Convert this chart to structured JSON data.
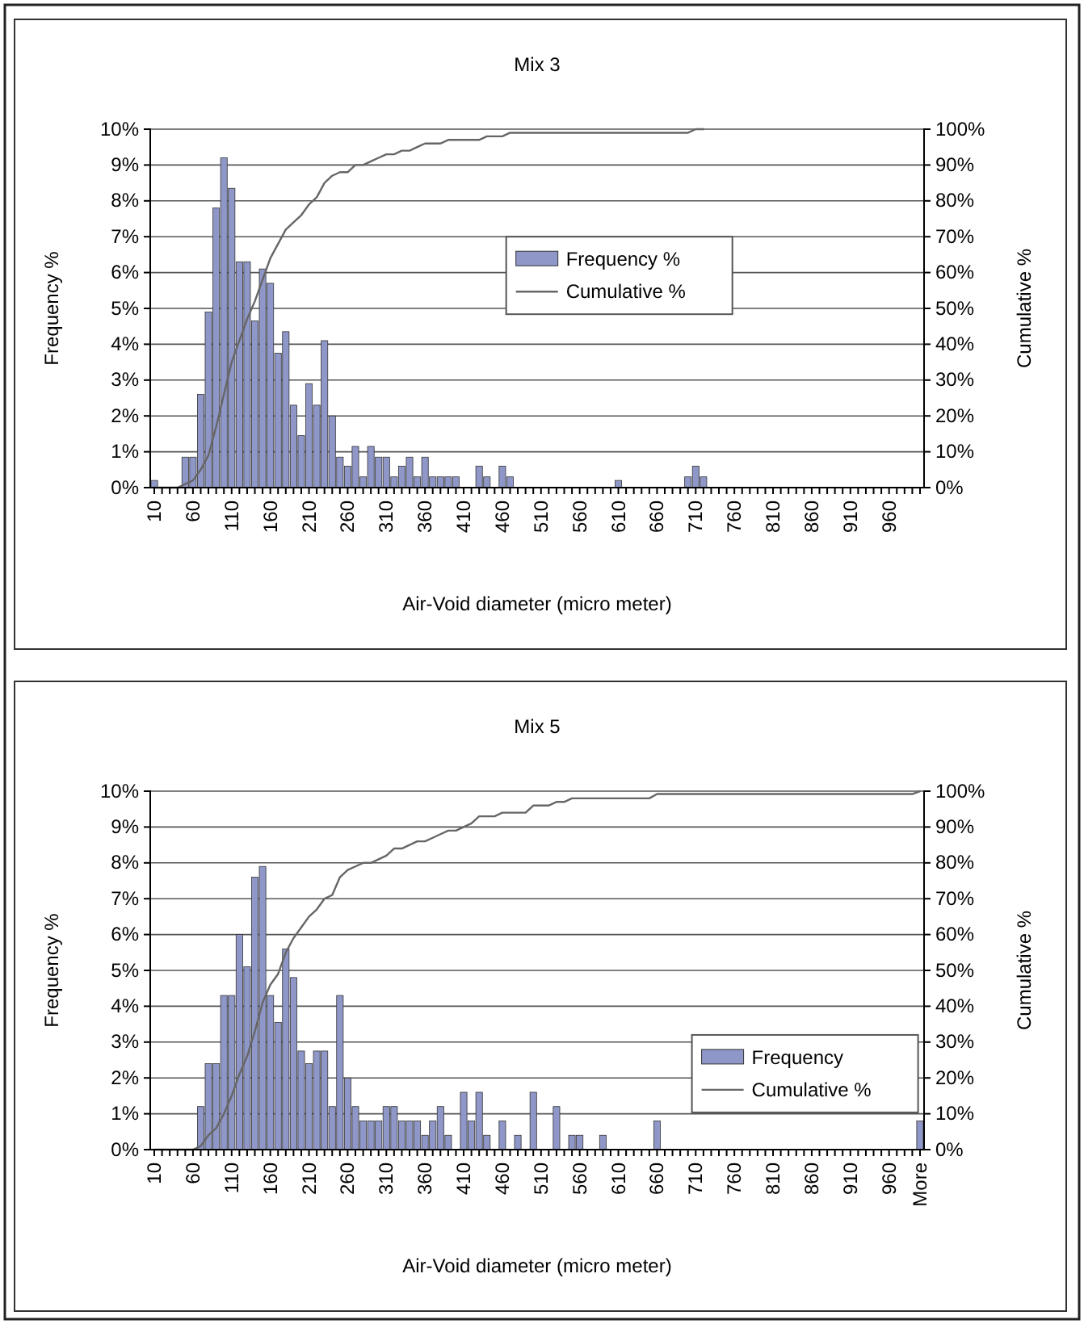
{
  "chart_data": [
    {
      "type": "bar",
      "title": "Mix 3",
      "xlabel": "Air-Void diameter (micro meter)",
      "ylabel": "Frequency %",
      "y2label": "Cumulative %",
      "categories": [
        "10",
        null,
        null,
        null,
        null,
        "60",
        null,
        null,
        null,
        null,
        "110",
        null,
        null,
        null,
        null,
        "160",
        null,
        null,
        null,
        null,
        "210",
        null,
        null,
        null,
        null,
        "260",
        null,
        null,
        null,
        null,
        "310",
        null,
        null,
        null,
        null,
        "360",
        null,
        null,
        null,
        null,
        "410",
        null,
        null,
        null,
        null,
        "460",
        null,
        null,
        null,
        null,
        "510",
        null,
        null,
        null,
        null,
        "560",
        null,
        null,
        null,
        null,
        "610",
        null,
        null,
        null,
        null,
        "660",
        null,
        null,
        null,
        null,
        "710",
        null,
        null,
        null,
        null,
        "760",
        null,
        null,
        null,
        null,
        "810",
        null,
        null,
        null,
        null,
        "860",
        null,
        null,
        null,
        null,
        "910",
        null,
        null,
        null,
        null,
        "960",
        null,
        null,
        null,
        null
      ],
      "series": [
        {
          "name": "Frequency %",
          "color": "#8e97c8",
          "values": [
            0.2,
            0,
            0,
            0,
            0.85,
            0.85,
            2.6,
            4.9,
            7.8,
            9.2,
            8.35,
            6.3,
            6.3,
            4.65,
            6.1,
            5.7,
            3.75,
            4.35,
            2.3,
            1.45,
            2.9,
            2.3,
            4.1,
            2.0,
            0.85,
            0.6,
            1.15,
            0.3,
            1.15,
            0.85,
            0.85,
            0.3,
            0.6,
            0.85,
            0.3,
            0.85,
            0.3,
            0.3,
            0.3,
            0.3,
            0,
            0,
            0.6,
            0.3,
            0,
            0.6,
            0.3,
            0,
            0,
            0,
            0,
            0,
            0,
            0,
            0,
            0,
            0,
            0,
            0,
            0,
            0.2,
            0,
            0,
            0,
            0,
            0,
            0,
            0,
            0,
            0.3,
            0.6,
            0.3,
            0,
            0,
            0,
            0,
            0,
            0,
            0,
            0,
            0,
            0,
            0,
            0,
            0,
            0,
            0,
            0,
            0,
            0,
            0,
            0,
            0,
            0,
            0,
            0,
            0,
            0,
            0,
            0
          ]
        },
        {
          "name": "Cumulative %",
          "type": "line",
          "axis": "y2",
          "color": "#666666",
          "values": [
            0,
            0,
            0,
            0,
            1,
            2,
            5,
            9,
            17,
            26,
            35,
            41,
            47,
            52,
            58,
            64,
            68,
            72,
            74,
            76,
            79,
            81,
            85,
            87,
            88,
            88,
            90,
            90,
            91,
            92,
            93,
            93,
            94,
            94,
            95,
            96,
            96,
            96,
            97,
            97,
            97,
            97,
            97,
            98,
            98,
            98,
            99,
            99,
            99,
            99,
            99,
            99,
            99,
            99,
            99,
            99,
            99,
            99,
            99,
            99,
            99,
            99,
            99,
            99,
            99,
            99,
            99,
            99,
            99,
            99,
            100,
            100,
            null,
            null,
            null,
            null,
            null,
            null,
            null,
            null,
            null,
            null,
            null,
            null,
            null,
            null,
            null,
            null,
            null,
            null,
            null,
            null,
            null,
            null,
            null,
            null,
            null,
            null,
            null,
            null
          ]
        }
      ],
      "ylim": [
        0,
        10
      ],
      "yticks": [
        {
          "value": 0,
          "label": "0%"
        },
        {
          "value": 1,
          "label": "1%"
        },
        {
          "value": 2,
          "label": "2%"
        },
        {
          "value": 3,
          "label": "3%"
        },
        {
          "value": 4,
          "label": "4%"
        },
        {
          "value": 5,
          "label": "5%"
        },
        {
          "value": 6,
          "label": "6%"
        },
        {
          "value": 7,
          "label": "7%"
        },
        {
          "value": 8,
          "label": "8%"
        },
        {
          "value": 9,
          "label": "9%"
        },
        {
          "value": 10,
          "label": "10%"
        }
      ],
      "y2lim": [
        0,
        100
      ],
      "y2ticks": [
        {
          "value": 0,
          "label": "0%"
        },
        {
          "value": 10,
          "label": "10%"
        },
        {
          "value": 20,
          "label": "20%"
        },
        {
          "value": 30,
          "label": "30%"
        },
        {
          "value": 40,
          "label": "40%"
        },
        {
          "value": 50,
          "label": "50%"
        },
        {
          "value": 60,
          "label": "60%"
        },
        {
          "value": 70,
          "label": "70%"
        },
        {
          "value": 80,
          "label": "80%"
        },
        {
          "value": 90,
          "label": "90%"
        },
        {
          "value": 100,
          "label": "100%"
        }
      ],
      "grid": "y",
      "legend": "center"
    },
    {
      "type": "bar",
      "title": "Mix 5",
      "xlabel": "Air-Void diameter (micro meter)",
      "ylabel": "Frequency %",
      "y2label": "Cumulative %",
      "categories": [
        "10",
        null,
        null,
        null,
        null,
        "60",
        null,
        null,
        null,
        null,
        "110",
        null,
        null,
        null,
        null,
        "160",
        null,
        null,
        null,
        null,
        "210",
        null,
        null,
        null,
        null,
        "260",
        null,
        null,
        null,
        null,
        "310",
        null,
        null,
        null,
        null,
        "360",
        null,
        null,
        null,
        null,
        "410",
        null,
        null,
        null,
        null,
        "460",
        null,
        null,
        null,
        null,
        "510",
        null,
        null,
        null,
        null,
        "560",
        null,
        null,
        null,
        null,
        "610",
        null,
        null,
        null,
        null,
        "660",
        null,
        null,
        null,
        null,
        "710",
        null,
        null,
        null,
        null,
        "760",
        null,
        null,
        null,
        null,
        "810",
        null,
        null,
        null,
        null,
        "860",
        null,
        null,
        null,
        null,
        "910",
        null,
        null,
        null,
        null,
        "960",
        null,
        null,
        null,
        "More"
      ],
      "series": [
        {
          "name": "Frequency",
          "color": "#8e97c8",
          "values": [
            0,
            0,
            0,
            0,
            0,
            0,
            1.2,
            2.4,
            2.4,
            4.3,
            4.3,
            6.0,
            5.1,
            7.6,
            7.9,
            4.3,
            3.55,
            5.6,
            4.8,
            2.75,
            2.4,
            2.75,
            2.75,
            1.2,
            4.3,
            2.0,
            1.2,
            0.8,
            0.8,
            0.8,
            1.2,
            1.2,
            0.8,
            0.8,
            0.8,
            0.4,
            0.8,
            1.2,
            0.4,
            0,
            1.6,
            0.8,
            1.6,
            0.4,
            0,
            0.8,
            0,
            0.4,
            0,
            1.6,
            0,
            0,
            1.2,
            0,
            0.4,
            0.4,
            0,
            0,
            0.4,
            0,
            0,
            0,
            0,
            0,
            0,
            0.8,
            0,
            0,
            0,
            0,
            0,
            0,
            0,
            0,
            0,
            0,
            0,
            0,
            0,
            0,
            0,
            0,
            0,
            0,
            0,
            0,
            0,
            0,
            0,
            0,
            0,
            0,
            0,
            0,
            0,
            0,
            0,
            0,
            0,
            0.8
          ]
        },
        {
          "name": "Cumulative %",
          "type": "line",
          "axis": "y2",
          "color": "#666666",
          "values": [
            0,
            0,
            0,
            0,
            0,
            0,
            1,
            4,
            6,
            10,
            15,
            21,
            26,
            33,
            41,
            46,
            49,
            55,
            59,
            62,
            65,
            67,
            70,
            71,
            76,
            78,
            79,
            80,
            80,
            81,
            82,
            84,
            84,
            85,
            86,
            86,
            87,
            88,
            89,
            89,
            90,
            91,
            93,
            93,
            93,
            94,
            94,
            94,
            94,
            96,
            96,
            96,
            97,
            97,
            98,
            98,
            98,
            98,
            98,
            98,
            98,
            98,
            98,
            98,
            98,
            99.2,
            99.2,
            99.2,
            99.2,
            99.2,
            99.2,
            99.2,
            99.2,
            99.2,
            99.2,
            99.2,
            99.2,
            99.2,
            99.2,
            99.2,
            99.2,
            99.2,
            99.2,
            99.2,
            99.2,
            99.2,
            99.2,
            99.2,
            99.2,
            99.2,
            99.2,
            99.2,
            99.2,
            99.2,
            99.2,
            99.2,
            99.2,
            99.2,
            99.2,
            100.0
          ]
        }
      ],
      "ylim": [
        0,
        10
      ],
      "yticks": [
        {
          "value": 0,
          "label": "0%"
        },
        {
          "value": 1,
          "label": "1%"
        },
        {
          "value": 2,
          "label": "2%"
        },
        {
          "value": 3,
          "label": "3%"
        },
        {
          "value": 4,
          "label": "4%"
        },
        {
          "value": 5,
          "label": "5%"
        },
        {
          "value": 6,
          "label": "6%"
        },
        {
          "value": 7,
          "label": "7%"
        },
        {
          "value": 8,
          "label": "8%"
        },
        {
          "value": 9,
          "label": "9%"
        },
        {
          "value": 10,
          "label": "10%"
        }
      ],
      "y2lim": [
        0,
        100
      ],
      "y2ticks": [
        {
          "value": 0,
          "label": "0%"
        },
        {
          "value": 10,
          "label": "10%"
        },
        {
          "value": 20,
          "label": "20%"
        },
        {
          "value": 30,
          "label": "30%"
        },
        {
          "value": 40,
          "label": "40%"
        },
        {
          "value": 50,
          "label": "50%"
        },
        {
          "value": 60,
          "label": "60%"
        },
        {
          "value": 70,
          "label": "70%"
        },
        {
          "value": 80,
          "label": "80%"
        },
        {
          "value": 90,
          "label": "90%"
        },
        {
          "value": 100,
          "label": "100%"
        }
      ],
      "grid": "y",
      "legend": "bottom right"
    }
  ]
}
